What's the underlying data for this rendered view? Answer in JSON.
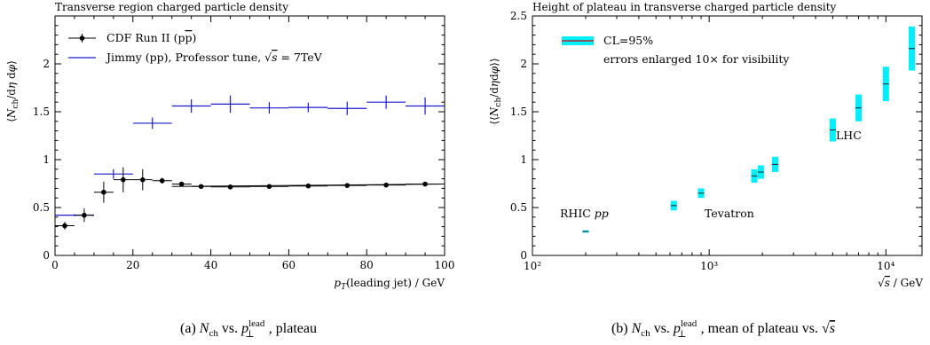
{
  "chart_data": [
    {
      "type": "scatter",
      "title": "Transverse region charged particle density",
      "xlabel": "p_T(leading jet) / GeV",
      "ylabel": "⟨N_ch/dη dφ⟩",
      "xlim": [
        0,
        100
      ],
      "ylim": [
        0,
        2.5
      ],
      "x_ticks": [
        0,
        20,
        40,
        60,
        80,
        100
      ],
      "y_ticks": [
        0,
        0.5,
        1,
        1.5,
        2
      ],
      "grid": false,
      "legend_position": "top-left",
      "series": [
        {
          "name": "CDF Run II (pp̄)",
          "color": "#000000",
          "points": [
            {
              "x": 2.5,
              "y": 0.31,
              "xerr": 2.5,
              "yerr": 0.04
            },
            {
              "x": 7.5,
              "y": 0.42,
              "xerr": 2.5,
              "yerr": 0.07
            },
            {
              "x": 12.5,
              "y": 0.66,
              "xerr": 2.5,
              "yerr": 0.11
            },
            {
              "x": 17.5,
              "y": 0.79,
              "xerr": 2.5,
              "yerr": 0.13
            },
            {
              "x": 22.5,
              "y": 0.79,
              "xerr": 2.5,
              "yerr": 0.11
            },
            {
              "x": 27.5,
              "y": 0.78,
              "xerr": 2.5,
              "yerr": 0.03
            },
            {
              "x": 32.5,
              "y": 0.745,
              "xerr": 2.5,
              "yerr": 0.02
            },
            {
              "x": 37.5,
              "y": 0.72,
              "xerr": 2.5,
              "yerr": 0.01
            },
            {
              "x": 45,
              "y": 0.715,
              "xerr": 5,
              "yerr": 0.01
            },
            {
              "x": 55,
              "y": 0.72,
              "xerr": 5,
              "yerr": 0.01
            },
            {
              "x": 65,
              "y": 0.725,
              "xerr": 5,
              "yerr": 0.01
            },
            {
              "x": 75,
              "y": 0.73,
              "xerr": 5,
              "yerr": 0.01
            },
            {
              "x": 85,
              "y": 0.735,
              "xerr": 5,
              "yerr": 0.01
            },
            {
              "x": 95,
              "y": 0.745,
              "xerr": 5,
              "yerr": 0.01
            }
          ],
          "fit_line": {
            "x": [
              30,
              100
            ],
            "y": [
              0.72,
              0.745
            ]
          }
        },
        {
          "name": "Jimmy (pp), Professor tune, √s = 7TeV",
          "color": "#1a1acc",
          "points": [
            {
              "x": 5,
              "y": 0.42,
              "xerr": 5,
              "yerr": 0.01
            },
            {
              "x": 15,
              "y": 0.85,
              "xerr": 5,
              "yerr": 0.05
            },
            {
              "x": 25,
              "y": 1.38,
              "xerr": 5,
              "yerr": 0.06
            },
            {
              "x": 35,
              "y": 1.56,
              "xerr": 5,
              "yerr": 0.07
            },
            {
              "x": 45,
              "y": 1.58,
              "xerr": 5,
              "yerr": 0.09
            },
            {
              "x": 55,
              "y": 1.54,
              "xerr": 5,
              "yerr": 0.06
            },
            {
              "x": 65,
              "y": 1.545,
              "xerr": 5,
              "yerr": 0.05
            },
            {
              "x": 75,
              "y": 1.535,
              "xerr": 5,
              "yerr": 0.07
            },
            {
              "x": 85,
              "y": 1.6,
              "xerr": 5,
              "yerr": 0.07
            },
            {
              "x": 95,
              "y": 1.56,
              "xerr": 5,
              "yerr": 0.09
            }
          ]
        }
      ],
      "legend": [
        "CDF Run II (pp̄)",
        "Jimmy (pp), Professor tune, √s = 7TeV"
      ],
      "caption": "(a) N_ch vs. p⊥lead, plateau"
    },
    {
      "type": "scatter",
      "title": "Height of plateau in transverse charged particle density",
      "xlabel": "√s / GeV",
      "ylabel": "⟨⟨N_ch/dηdφ⟩⟩",
      "xscale": "log",
      "xlim": [
        100,
        16000
      ],
      "ylim": [
        0,
        2.5
      ],
      "x_ticks": [
        {
          "value": 100,
          "label": "10²"
        },
        {
          "value": 1000,
          "label": "10³"
        },
        {
          "value": 10000,
          "label": "10⁴"
        }
      ],
      "y_ticks": [
        0,
        0.5,
        1,
        1.5,
        2,
        2.5
      ],
      "grid": false,
      "legend_position": "top-left",
      "band_color": "#00f0ff",
      "points": [
        {
          "x": 200,
          "y": 0.25,
          "err": 0.012
        },
        {
          "x": 630,
          "y": 0.52,
          "err": 0.05
        },
        {
          "x": 900,
          "y": 0.65,
          "err": 0.05
        },
        {
          "x": 1800,
          "y": 0.83,
          "err": 0.07
        },
        {
          "x": 1960,
          "y": 0.87,
          "err": 0.07
        },
        {
          "x": 2360,
          "y": 0.95,
          "err": 0.08
        },
        {
          "x": 5000,
          "y": 1.31,
          "err": 0.12
        },
        {
          "x": 7000,
          "y": 1.54,
          "err": 0.14
        },
        {
          "x": 10000,
          "y": 1.79,
          "err": 0.18
        },
        {
          "x": 14000,
          "y": 2.16,
          "err": 0.23
        }
      ],
      "legend": [
        "CL=95%",
        "errors enlarged 10× for visibility"
      ],
      "annotations": [
        "RHIC pp",
        "Tevatron",
        "LHC"
      ],
      "caption": "(b) N_ch vs. p⊥lead, mean of plateau vs. √s"
    }
  ]
}
